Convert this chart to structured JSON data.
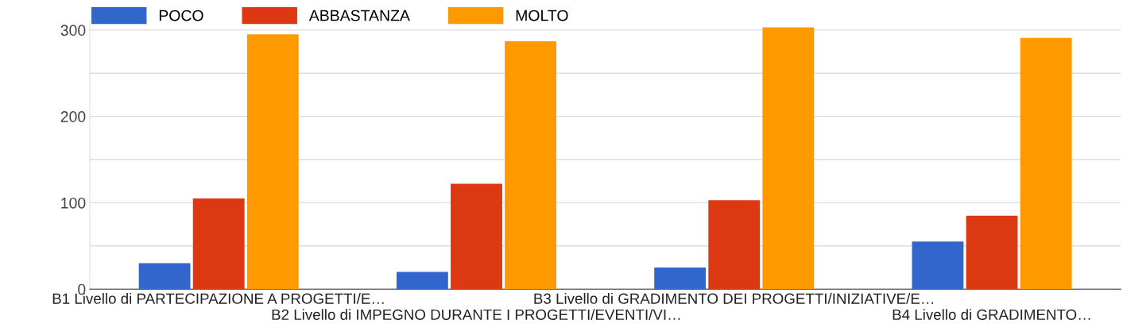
{
  "chart_data": {
    "type": "bar",
    "categories": [
      "B1 Livello di PARTECIPAZIONE A PROGETTI/E…",
      "B2 Livello di IMPEGNO DURANTE I PROGETTI/EVENTI/VI…",
      "B3 Livello di GRADIMENTO DEI PROGETTI/INIZIATIVE/E…",
      "B4 Livello di GRADIMENTO…"
    ],
    "series": [
      {
        "name": "POCO",
        "color": "#3366cc",
        "values": [
          30,
          20,
          25,
          55
        ]
      },
      {
        "name": "ABBASTANZA",
        "color": "#dc3912",
        "values": [
          105,
          122,
          103,
          85
        ]
      },
      {
        "name": "MOLTO",
        "color": "#ff9900",
        "values": [
          295,
          287,
          303,
          291
        ]
      }
    ],
    "ylim": [
      0,
      310
    ],
    "yticks": [
      0,
      {
        "value": 50,
        "label": null
      },
      100,
      {
        "value": 150,
        "label": null
      },
      200,
      {
        "value": 250,
        "label": null
      },
      300
    ],
    "grid": "y",
    "legend": "top left"
  }
}
